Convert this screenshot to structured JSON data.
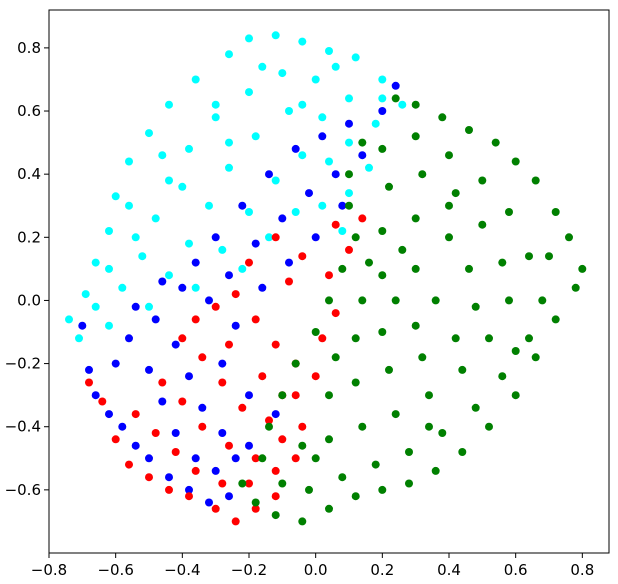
{
  "chart_data": {
    "type": "scatter",
    "title": "",
    "xlabel": "",
    "ylabel": "",
    "xlim": [
      -0.8,
      0.88
    ],
    "ylim": [
      -0.8,
      0.92
    ],
    "grid": false,
    "legend": "none",
    "x_ticks": [
      -0.8,
      -0.6,
      -0.4,
      -0.2,
      0.0,
      0.2,
      0.4,
      0.6,
      0.8
    ],
    "y_ticks": [
      -0.6,
      -0.4,
      -0.2,
      0.0,
      0.2,
      0.4,
      0.6,
      0.8
    ],
    "x_tick_labels": [
      "−0.8",
      "−0.6",
      "−0.4",
      "−0.2",
      "0.0",
      "0.2",
      "0.4",
      "0.6",
      "0.8"
    ],
    "y_tick_labels": [
      "−0.6",
      "−0.4",
      "−0.2",
      "0.0",
      "0.2",
      "0.4",
      "0.6",
      "0.8"
    ],
    "series": [
      {
        "color": "#00ffff",
        "points": [
          [
            -0.74,
            -0.06
          ],
          [
            -0.71,
            -0.12
          ],
          [
            -0.69,
            0.02
          ],
          [
            -0.66,
            0.12
          ],
          [
            -0.62,
            0.22
          ],
          [
            -0.6,
            0.33
          ],
          [
            -0.56,
            0.44
          ],
          [
            -0.5,
            0.53
          ],
          [
            -0.44,
            0.62
          ],
          [
            -0.36,
            0.7
          ],
          [
            -0.26,
            0.78
          ],
          [
            -0.2,
            0.83
          ],
          [
            -0.12,
            0.84
          ],
          [
            -0.04,
            0.82
          ],
          [
            0.04,
            0.79
          ],
          [
            0.12,
            0.77
          ],
          [
            0.2,
            0.7
          ],
          [
            0.26,
            0.62
          ],
          [
            -0.62,
            -0.08
          ],
          [
            -0.58,
            0.04
          ],
          [
            -0.52,
            0.14
          ],
          [
            -0.48,
            0.26
          ],
          [
            -0.44,
            0.38
          ],
          [
            -0.38,
            0.48
          ],
          [
            -0.3,
            0.58
          ],
          [
            -0.2,
            0.66
          ],
          [
            -0.1,
            0.72
          ],
          [
            0.0,
            0.7
          ],
          [
            0.1,
            0.64
          ],
          [
            0.18,
            0.56
          ],
          [
            -0.5,
            -0.02
          ],
          [
            -0.44,
            0.08
          ],
          [
            -0.38,
            0.18
          ],
          [
            -0.32,
            0.3
          ],
          [
            -0.26,
            0.42
          ],
          [
            -0.18,
            0.52
          ],
          [
            -0.08,
            0.6
          ],
          [
            0.02,
            0.58
          ],
          [
            0.1,
            0.5
          ],
          [
            0.16,
            0.42
          ],
          [
            -0.36,
            0.04
          ],
          [
            -0.28,
            0.16
          ],
          [
            -0.2,
            0.28
          ],
          [
            -0.12,
            0.38
          ],
          [
            -0.04,
            0.46
          ],
          [
            0.04,
            0.44
          ],
          [
            0.1,
            0.34
          ],
          [
            -0.22,
            0.1
          ],
          [
            -0.14,
            0.2
          ],
          [
            -0.06,
            0.28
          ],
          [
            0.02,
            0.3
          ],
          [
            0.08,
            0.22
          ],
          [
            -0.56,
            0.3
          ],
          [
            -0.46,
            0.46
          ],
          [
            -0.3,
            0.62
          ],
          [
            -0.16,
            0.74
          ],
          [
            0.06,
            0.74
          ],
          [
            0.2,
            0.64
          ],
          [
            -0.4,
            0.36
          ],
          [
            -0.26,
            0.5
          ],
          [
            -0.04,
            0.62
          ],
          [
            -0.62,
            0.1
          ],
          [
            -0.54,
            0.2
          ],
          [
            -0.66,
            -0.02
          ]
        ]
      },
      {
        "color": "#0000ff",
        "points": [
          [
            -0.7,
            -0.08
          ],
          [
            -0.68,
            -0.22
          ],
          [
            -0.66,
            -0.3
          ],
          [
            -0.62,
            -0.36
          ],
          [
            -0.58,
            -0.4
          ],
          [
            -0.54,
            -0.46
          ],
          [
            -0.5,
            -0.5
          ],
          [
            -0.44,
            -0.56
          ],
          [
            -0.38,
            -0.6
          ],
          [
            -0.32,
            -0.64
          ],
          [
            -0.26,
            -0.62
          ],
          [
            -0.6,
            -0.2
          ],
          [
            -0.56,
            -0.12
          ],
          [
            -0.5,
            -0.22
          ],
          [
            -0.46,
            -0.32
          ],
          [
            -0.42,
            -0.42
          ],
          [
            -0.36,
            -0.5
          ],
          [
            -0.3,
            -0.54
          ],
          [
            -0.24,
            -0.5
          ],
          [
            -0.48,
            -0.06
          ],
          [
            -0.42,
            -0.14
          ],
          [
            -0.38,
            -0.24
          ],
          [
            -0.34,
            -0.34
          ],
          [
            -0.28,
            -0.42
          ],
          [
            -0.2,
            -0.46
          ],
          [
            -0.36,
            0.12
          ],
          [
            -0.3,
            0.2
          ],
          [
            -0.22,
            0.3
          ],
          [
            -0.14,
            0.4
          ],
          [
            -0.06,
            0.48
          ],
          [
            0.02,
            0.52
          ],
          [
            0.1,
            0.56
          ],
          [
            0.2,
            0.6
          ],
          [
            0.24,
            0.68
          ],
          [
            -0.4,
            0.04
          ],
          [
            -0.32,
            0.0
          ],
          [
            -0.26,
            0.08
          ],
          [
            -0.18,
            0.18
          ],
          [
            -0.1,
            0.26
          ],
          [
            -0.02,
            0.34
          ],
          [
            0.06,
            0.4
          ],
          [
            0.14,
            0.46
          ],
          [
            -0.54,
            -0.02
          ],
          [
            -0.46,
            0.06
          ],
          [
            -0.24,
            -0.08
          ],
          [
            -0.16,
            0.04
          ],
          [
            -0.08,
            0.12
          ],
          [
            0.0,
            0.2
          ],
          [
            0.08,
            0.3
          ],
          [
            -0.28,
            -0.2
          ],
          [
            -0.2,
            -0.3
          ],
          [
            -0.12,
            -0.36
          ]
        ]
      },
      {
        "color": "#ff0000",
        "points": [
          [
            -0.68,
            -0.26
          ],
          [
            -0.64,
            -0.32
          ],
          [
            -0.6,
            -0.44
          ],
          [
            -0.56,
            -0.52
          ],
          [
            -0.5,
            -0.56
          ],
          [
            -0.44,
            -0.6
          ],
          [
            -0.38,
            -0.62
          ],
          [
            -0.3,
            -0.66
          ],
          [
            -0.24,
            -0.7
          ],
          [
            -0.18,
            -0.66
          ],
          [
            -0.12,
            -0.62
          ],
          [
            -0.54,
            -0.36
          ],
          [
            -0.48,
            -0.42
          ],
          [
            -0.42,
            -0.48
          ],
          [
            -0.36,
            -0.54
          ],
          [
            -0.28,
            -0.58
          ],
          [
            -0.2,
            -0.58
          ],
          [
            -0.12,
            -0.54
          ],
          [
            -0.06,
            -0.5
          ],
          [
            -0.46,
            -0.26
          ],
          [
            -0.4,
            -0.32
          ],
          [
            -0.34,
            -0.4
          ],
          [
            -0.26,
            -0.46
          ],
          [
            -0.18,
            -0.5
          ],
          [
            -0.1,
            -0.44
          ],
          [
            -0.04,
            -0.4
          ],
          [
            -0.4,
            -0.12
          ],
          [
            -0.34,
            -0.18
          ],
          [
            -0.28,
            -0.26
          ],
          [
            -0.22,
            -0.34
          ],
          [
            -0.14,
            -0.38
          ],
          [
            -0.06,
            -0.3
          ],
          [
            0.0,
            -0.24
          ],
          [
            -0.3,
            -0.02
          ],
          [
            -0.24,
            0.02
          ],
          [
            -0.18,
            -0.06
          ],
          [
            -0.12,
            -0.14
          ],
          [
            -0.06,
            -0.2
          ],
          [
            0.02,
            -0.12
          ],
          [
            0.06,
            -0.04
          ],
          [
            -0.2,
            0.12
          ],
          [
            -0.12,
            0.2
          ],
          [
            -0.04,
            0.14
          ],
          [
            0.04,
            0.08
          ],
          [
            0.1,
            0.16
          ],
          [
            0.14,
            0.26
          ],
          [
            0.06,
            0.24
          ],
          [
            -0.08,
            0.06
          ],
          [
            -0.16,
            -0.24
          ],
          [
            -0.26,
            -0.14
          ],
          [
            -0.36,
            -0.06
          ],
          [
            -0.1,
            -0.3
          ]
        ]
      },
      {
        "color": "#008000",
        "points": [
          [
            -0.22,
            -0.58
          ],
          [
            -0.18,
            -0.64
          ],
          [
            -0.12,
            -0.68
          ],
          [
            -0.04,
            -0.7
          ],
          [
            0.04,
            -0.66
          ],
          [
            0.12,
            -0.62
          ],
          [
            0.2,
            -0.6
          ],
          [
            0.28,
            -0.58
          ],
          [
            0.36,
            -0.54
          ],
          [
            0.44,
            -0.48
          ],
          [
            0.52,
            -0.4
          ],
          [
            0.6,
            -0.3
          ],
          [
            0.66,
            -0.18
          ],
          [
            0.72,
            -0.06
          ],
          [
            0.78,
            0.04
          ],
          [
            0.8,
            0.1
          ],
          [
            0.76,
            0.2
          ],
          [
            0.72,
            0.28
          ],
          [
            0.66,
            0.38
          ],
          [
            0.6,
            0.44
          ],
          [
            0.54,
            0.5
          ],
          [
            0.46,
            0.54
          ],
          [
            0.38,
            0.58
          ],
          [
            0.3,
            0.62
          ],
          [
            0.24,
            0.64
          ],
          [
            0.14,
            0.5
          ],
          [
            0.1,
            0.4
          ],
          [
            0.1,
            0.3
          ],
          [
            0.12,
            0.2
          ],
          [
            0.08,
            0.1
          ],
          [
            0.04,
            0.0
          ],
          [
            0.0,
            -0.1
          ],
          [
            -0.06,
            -0.2
          ],
          [
            -0.1,
            -0.3
          ],
          [
            -0.14,
            -0.4
          ],
          [
            -0.16,
            -0.5
          ],
          [
            0.2,
            0.48
          ],
          [
            0.3,
            0.52
          ],
          [
            0.4,
            0.46
          ],
          [
            0.5,
            0.38
          ],
          [
            0.58,
            0.28
          ],
          [
            0.64,
            0.14
          ],
          [
            0.68,
            0.0
          ],
          [
            0.64,
            -0.12
          ],
          [
            0.56,
            -0.24
          ],
          [
            0.48,
            -0.34
          ],
          [
            0.38,
            -0.42
          ],
          [
            0.28,
            -0.48
          ],
          [
            0.18,
            -0.52
          ],
          [
            0.08,
            -0.56
          ],
          [
            -0.02,
            -0.6
          ],
          [
            -0.1,
            -0.58
          ],
          [
            0.22,
            0.36
          ],
          [
            0.32,
            0.4
          ],
          [
            0.42,
            0.34
          ],
          [
            0.5,
            0.24
          ],
          [
            0.56,
            0.12
          ],
          [
            0.58,
            0.0
          ],
          [
            0.52,
            -0.12
          ],
          [
            0.44,
            -0.22
          ],
          [
            0.34,
            -0.3
          ],
          [
            0.24,
            -0.36
          ],
          [
            0.14,
            -0.4
          ],
          [
            0.04,
            -0.44
          ],
          [
            -0.04,
            -0.46
          ],
          [
            0.2,
            0.22
          ],
          [
            0.3,
            0.26
          ],
          [
            0.4,
            0.2
          ],
          [
            0.46,
            0.1
          ],
          [
            0.48,
            -0.02
          ],
          [
            0.42,
            -0.12
          ],
          [
            0.32,
            -0.18
          ],
          [
            0.22,
            -0.22
          ],
          [
            0.12,
            -0.26
          ],
          [
            0.04,
            -0.3
          ],
          [
            0.2,
            0.08
          ],
          [
            0.3,
            0.1
          ],
          [
            0.36,
            0.0
          ],
          [
            0.3,
            -0.08
          ],
          [
            0.2,
            -0.1
          ],
          [
            0.12,
            -0.12
          ],
          [
            0.14,
            0.0
          ],
          [
            0.24,
            0.0
          ],
          [
            0.26,
            0.16
          ],
          [
            0.16,
            0.12
          ],
          [
            0.06,
            -0.18
          ],
          [
            0.4,
            0.3
          ],
          [
            0.34,
            -0.4
          ],
          [
            0.6,
            -0.16
          ],
          [
            0.7,
            0.14
          ],
          [
            0.0,
            -0.5
          ]
        ]
      }
    ]
  }
}
